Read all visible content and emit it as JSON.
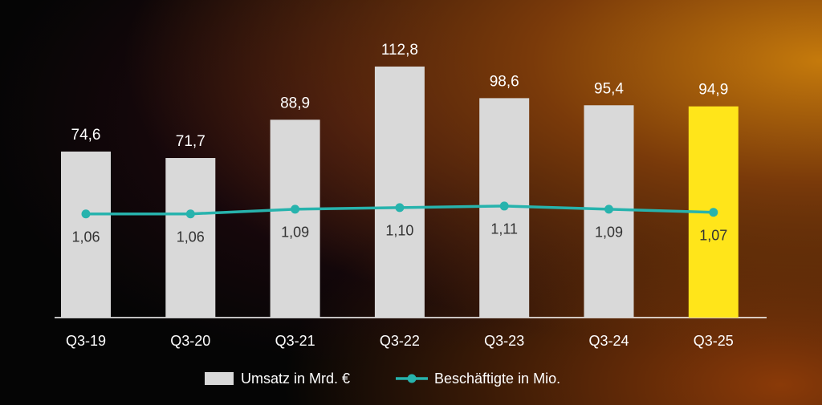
{
  "chart_data": {
    "type": "bar",
    "categories": [
      "Q3-19",
      "Q3-20",
      "Q3-21",
      "Q3-22",
      "Q3-23",
      "Q3-24",
      "Q3-25"
    ],
    "ylim": [
      0,
      120
    ],
    "y2lim": [
      0.4,
      2.1
    ],
    "series": [
      {
        "name": "Umsatz in Mrd. €",
        "type": "bar",
        "colors": [
          "#d9d9d9",
          "#d9d9d9",
          "#d9d9d9",
          "#d9d9d9",
          "#d9d9d9",
          "#d9d9d9",
          "#ffe51a"
        ],
        "values": [
          74.6,
          71.7,
          88.9,
          112.8,
          98.6,
          95.4,
          94.9
        ],
        "value_labels": [
          "74,6",
          "71,7",
          "88,9",
          "112,8",
          "98,6",
          "95,4",
          "94,9"
        ]
      },
      {
        "name": "Beschäftigte in Mio.",
        "type": "line",
        "axis": "y2",
        "color": "#27b3ad",
        "values": [
          1.06,
          1.06,
          1.09,
          1.1,
          1.11,
          1.09,
          1.07
        ],
        "value_labels": [
          "1,06",
          "1,06",
          "1,09",
          "1,10",
          "1,11",
          "1,09",
          "1,07"
        ]
      }
    ],
    "legend": "bottom"
  }
}
